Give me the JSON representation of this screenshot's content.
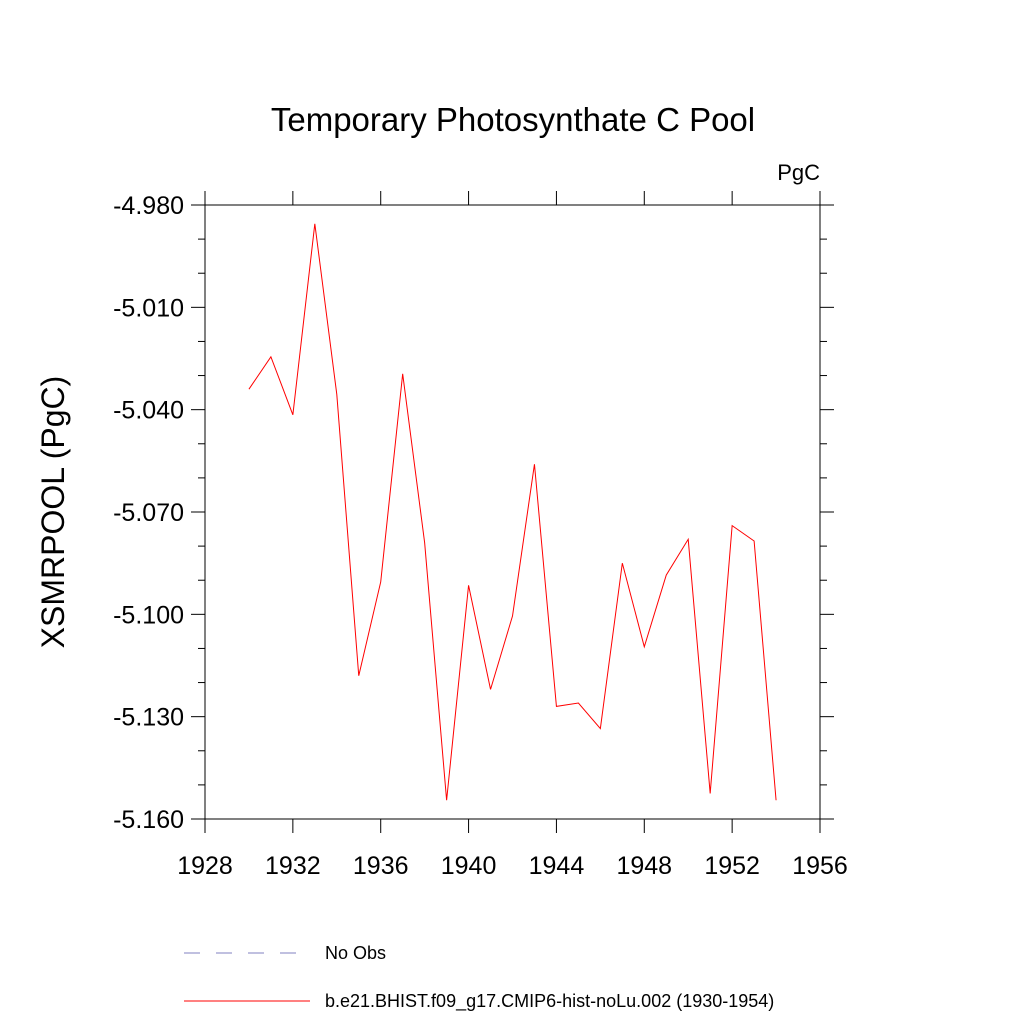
{
  "chart_data": {
    "type": "line",
    "title": "Temporary Photosynthate C Pool",
    "units_label": "PgC",
    "ylabel": "XSMRPOOL  (PgC)",
    "xlabel": "",
    "xlim": [
      1928,
      1956
    ],
    "ylim": [
      -5.16,
      -4.98
    ],
    "x_ticks": [
      1928,
      1932,
      1936,
      1940,
      1944,
      1948,
      1952,
      1956
    ],
    "y_ticks": [
      "-4.980",
      "-5.010",
      "-5.040",
      "-5.070",
      "-5.100",
      "-5.130",
      "-5.160"
    ],
    "y_tick_values": [
      -4.98,
      -5.01,
      -5.04,
      -5.07,
      -5.1,
      -5.13,
      -5.16
    ],
    "grid": false,
    "legend_position": "bottom",
    "series": [
      {
        "name": "b.e21.BHIST.f09_g17.CMIP6-hist-noLu.002 (1930-1954)",
        "color": "#ff0000",
        "style": "solid",
        "x": [
          1930,
          1931,
          1932,
          1933,
          1934,
          1935,
          1936,
          1937,
          1938,
          1939,
          1940,
          1941,
          1942,
          1943,
          1944,
          1945,
          1946,
          1947,
          1948,
          1949,
          1950,
          1951,
          1952,
          1953,
          1954
        ],
        "y": [
          -5.034,
          -5.0245,
          -5.0415,
          -4.9855,
          -5.0355,
          -5.118,
          -5.0905,
          -5.0295,
          -5.079,
          -5.1545,
          -5.0915,
          -5.122,
          -5.1005,
          -5.056,
          -5.127,
          -5.126,
          -5.1335,
          -5.085,
          -5.1095,
          -5.0885,
          -5.078,
          -5.1525,
          -5.074,
          -5.0785,
          -5.1545
        ]
      }
    ],
    "legend": [
      {
        "label": "No Obs",
        "color": "#8080c0",
        "style": "dashed"
      },
      {
        "label": "b.e21.BHIST.f09_g17.CMIP6-hist-noLu.002 (1930-1954)",
        "color": "#ff0000",
        "style": "solid"
      }
    ]
  }
}
